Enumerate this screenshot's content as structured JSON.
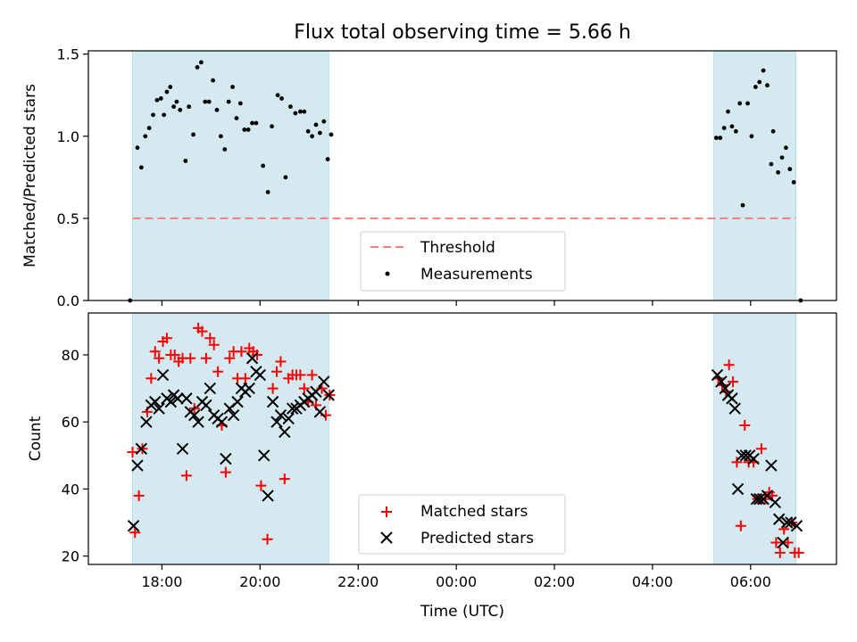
{
  "chart_data": {
    "title": "Flux total observing time = 5.66 h",
    "xlabel": "Time (UTC)",
    "x_type": "time (hours, continuing past midnight)",
    "x_ticks": [
      {
        "value": 18,
        "label": "18:00"
      },
      {
        "value": 20,
        "label": "20:00"
      },
      {
        "value": 22,
        "label": "22:00"
      },
      {
        "value": 24,
        "label": "00:00"
      },
      {
        "value": 26,
        "label": "02:00"
      },
      {
        "value": 28,
        "label": "04:00"
      },
      {
        "value": 30,
        "label": "06:00"
      }
    ],
    "xlim": [
      16.5,
      31.75
    ],
    "observing_windows": [
      [
        17.4,
        21.4
      ],
      [
        29.25,
        30.92
      ]
    ],
    "window_color": "#d4eaf0",
    "panels": [
      {
        "type": "scatter",
        "ylabel": "Matched/Predicted stars",
        "ylim": [
          0,
          1.52
        ],
        "y_ticks": [
          0.0,
          0.5,
          1.0,
          1.5
        ],
        "y_tick_labels": [
          "0.0",
          "0.5",
          "1.0",
          "1.5"
        ],
        "threshold": {
          "name": "Threshold",
          "value": 0.5,
          "x_range": [
            17.4,
            30.92
          ],
          "color": "#f08080",
          "style": "dashed"
        },
        "series": [
          {
            "name": "Measurements",
            "marker": "dot",
            "color": "#000000",
            "points": [
              [
                17.35,
                0.0
              ],
              [
                17.5,
                0.93
              ],
              [
                17.58,
                0.81
              ],
              [
                17.66,
                1.0
              ],
              [
                17.74,
                1.05
              ],
              [
                17.82,
                1.13
              ],
              [
                17.9,
                1.22
              ],
              [
                17.98,
                1.23
              ],
              [
                18.04,
                1.13
              ],
              [
                18.1,
                1.27
              ],
              [
                18.17,
                1.3
              ],
              [
                18.24,
                1.18
              ],
              [
                18.3,
                1.21
              ],
              [
                18.37,
                1.16
              ],
              [
                18.48,
                0.85
              ],
              [
                18.55,
                1.18
              ],
              [
                18.64,
                1.01
              ],
              [
                18.72,
                1.42
              ],
              [
                18.8,
                1.45
              ],
              [
                18.88,
                1.21
              ],
              [
                18.96,
                1.21
              ],
              [
                19.04,
                1.34
              ],
              [
                19.12,
                1.16
              ],
              [
                19.2,
                1.0
              ],
              [
                19.28,
                0.92
              ],
              [
                19.36,
                1.21
              ],
              [
                19.44,
                1.3
              ],
              [
                19.52,
                1.11
              ],
              [
                19.6,
                1.2
              ],
              [
                19.68,
                1.04
              ],
              [
                19.76,
                1.04
              ],
              [
                19.84,
                1.08
              ],
              [
                19.92,
                1.08
              ],
              [
                20.06,
                0.82
              ],
              [
                20.16,
                0.66
              ],
              [
                20.24,
                1.06
              ],
              [
                20.36,
                1.25
              ],
              [
                20.44,
                1.23
              ],
              [
                20.52,
                0.75
              ],
              [
                20.62,
                1.18
              ],
              [
                20.72,
                1.14
              ],
              [
                20.82,
                1.15
              ],
              [
                20.9,
                1.15
              ],
              [
                20.98,
                1.03
              ],
              [
                21.06,
                1.0
              ],
              [
                21.14,
                1.07
              ],
              [
                21.22,
                1.02
              ],
              [
                21.3,
                1.09
              ],
              [
                21.38,
                0.86
              ],
              [
                21.45,
                1.01
              ],
              [
                29.3,
                0.99
              ],
              [
                29.38,
                0.99
              ],
              [
                29.46,
                1.05
              ],
              [
                29.54,
                1.15
              ],
              [
                29.62,
                1.06
              ],
              [
                29.7,
                1.03
              ],
              [
                29.78,
                1.2
              ],
              [
                29.84,
                0.58
              ],
              [
                29.94,
                1.2
              ],
              [
                30.02,
                1.0
              ],
              [
                30.1,
                1.3
              ],
              [
                30.18,
                1.33
              ],
              [
                30.26,
                1.4
              ],
              [
                30.34,
                1.31
              ],
              [
                30.42,
                0.83
              ],
              [
                30.46,
                1.03
              ],
              [
                30.56,
                0.78
              ],
              [
                30.64,
                0.87
              ],
              [
                30.72,
                0.93
              ],
              [
                30.8,
                0.8
              ],
              [
                30.88,
                0.72
              ],
              [
                31.02,
                0.0
              ]
            ]
          }
        ],
        "legend": [
          "Threshold",
          "Measurements"
        ]
      },
      {
        "type": "scatter",
        "ylabel": "Count",
        "ylim": [
          17.5,
          92.5
        ],
        "y_ticks": [
          20,
          40,
          60,
          80
        ],
        "y_tick_labels": [
          "20",
          "40",
          "60",
          "80"
        ],
        "series": [
          {
            "name": "Matched stars",
            "marker": "plus",
            "color": "#ff0000",
            "points": [
              [
                17.4,
                51
              ],
              [
                17.45,
                27
              ],
              [
                17.53,
                38
              ],
              [
                17.6,
                52
              ],
              [
                17.7,
                63
              ],
              [
                17.78,
                73
              ],
              [
                17.86,
                81
              ],
              [
                17.94,
                79
              ],
              [
                18.02,
                84
              ],
              [
                18.1,
                85
              ],
              [
                18.18,
                80
              ],
              [
                18.26,
                80
              ],
              [
                18.34,
                78
              ],
              [
                18.42,
                79
              ],
              [
                18.5,
                44
              ],
              [
                18.58,
                79
              ],
              [
                18.66,
                64
              ],
              [
                18.74,
                88
              ],
              [
                18.82,
                87
              ],
              [
                18.9,
                79
              ],
              [
                18.98,
                85
              ],
              [
                19.06,
                83
              ],
              [
                19.14,
                75
              ],
              [
                19.22,
                59
              ],
              [
                19.3,
                45
              ],
              [
                19.38,
                79
              ],
              [
                19.46,
                81
              ],
              [
                19.54,
                73
              ],
              [
                19.62,
                81
              ],
              [
                19.7,
                73
              ],
              [
                19.78,
                82
              ],
              [
                19.86,
                81
              ],
              [
                19.94,
                80
              ],
              [
                20.02,
                41
              ],
              [
                20.15,
                25
              ],
              [
                20.26,
                70
              ],
              [
                20.34,
                75
              ],
              [
                20.42,
                78
              ],
              [
                20.5,
                43
              ],
              [
                20.58,
                73
              ],
              [
                20.66,
                74
              ],
              [
                20.74,
                74
              ],
              [
                20.82,
                74
              ],
              [
                20.9,
                70
              ],
              [
                20.98,
                66
              ],
              [
                21.06,
                74
              ],
              [
                21.14,
                65
              ],
              [
                21.26,
                70
              ],
              [
                21.34,
                62
              ],
              [
                21.42,
                68
              ],
              [
                29.34,
                73
              ],
              [
                29.42,
                71
              ],
              [
                29.5,
                69
              ],
              [
                29.56,
                77
              ],
              [
                29.64,
                72
              ],
              [
                29.72,
                48
              ],
              [
                29.8,
                29
              ],
              [
                29.88,
                59
              ],
              [
                29.96,
                48
              ],
              [
                30.06,
                48
              ],
              [
                30.14,
                37
              ],
              [
                30.22,
                52
              ],
              [
                30.3,
                37
              ],
              [
                30.38,
                39
              ],
              [
                30.44,
                38
              ],
              [
                30.52,
                24
              ],
              [
                30.6,
                21
              ],
              [
                30.68,
                28
              ],
              [
                30.76,
                24
              ],
              [
                30.84,
                30
              ],
              [
                30.9,
                21
              ],
              [
                30.98,
                21
              ]
            ]
          },
          {
            "name": "Predicted stars",
            "marker": "x",
            "color": "#000000",
            "points": [
              [
                17.42,
                29
              ],
              [
                17.5,
                47
              ],
              [
                17.58,
                52
              ],
              [
                17.68,
                60
              ],
              [
                17.78,
                65
              ],
              [
                17.86,
                66
              ],
              [
                17.94,
                64
              ],
              [
                18.02,
                74
              ],
              [
                18.1,
                67
              ],
              [
                18.18,
                66
              ],
              [
                18.24,
                68
              ],
              [
                18.32,
                67
              ],
              [
                18.42,
                52
              ],
              [
                18.5,
                67
              ],
              [
                18.58,
                63
              ],
              [
                18.66,
                62
              ],
              [
                18.74,
                60
              ],
              [
                18.82,
                66
              ],
              [
                18.9,
                65
              ],
              [
                18.98,
                70
              ],
              [
                19.06,
                62
              ],
              [
                19.14,
                61
              ],
              [
                19.22,
                60
              ],
              [
                19.3,
                49
              ],
              [
                19.38,
                64
              ],
              [
                19.46,
                62
              ],
              [
                19.54,
                66
              ],
              [
                19.62,
                70
              ],
              [
                19.7,
                69
              ],
              [
                19.78,
                70
              ],
              [
                19.84,
                79
              ],
              [
                19.92,
                75
              ],
              [
                20.0,
                74
              ],
              [
                20.08,
                50
              ],
              [
                20.16,
                38
              ],
              [
                20.26,
                66
              ],
              [
                20.34,
                60
              ],
              [
                20.42,
                62
              ],
              [
                20.5,
                57
              ],
              [
                20.58,
                61
              ],
              [
                20.66,
                64
              ],
              [
                20.74,
                64
              ],
              [
                20.82,
                65
              ],
              [
                20.9,
                66
              ],
              [
                20.98,
                67
              ],
              [
                21.06,
                68
              ],
              [
                21.14,
                69
              ],
              [
                21.22,
                63
              ],
              [
                21.3,
                72
              ],
              [
                21.4,
                68
              ],
              [
                29.32,
                74
              ],
              [
                29.4,
                72
              ],
              [
                29.48,
                70
              ],
              [
                29.54,
                68
              ],
              [
                29.62,
                67
              ],
              [
                29.68,
                64
              ],
              [
                29.74,
                40
              ],
              [
                29.82,
                50
              ],
              [
                29.9,
                50
              ],
              [
                29.98,
                50
              ],
              [
                30.06,
                49
              ],
              [
                30.12,
                37
              ],
              [
                30.18,
                37
              ],
              [
                30.26,
                37
              ],
              [
                30.34,
                38
              ],
              [
                30.42,
                47
              ],
              [
                30.5,
                36
              ],
              [
                30.58,
                31
              ],
              [
                30.66,
                24
              ],
              [
                30.74,
                30
              ],
              [
                30.82,
                30
              ],
              [
                30.94,
                29
              ]
            ]
          }
        ],
        "legend": [
          "Matched stars",
          "Predicted stars"
        ]
      }
    ]
  }
}
